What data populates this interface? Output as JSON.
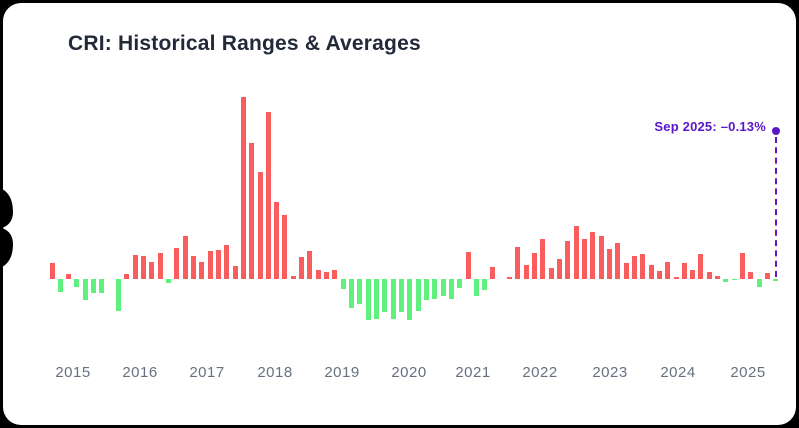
{
  "page": {
    "background": "#000000"
  },
  "card": {
    "background": "#ffffff",
    "shape": "rounded-card-with-left-tail"
  },
  "header": {
    "title": "CRI: Historical Ranges & Averages"
  },
  "annotation": {
    "text": "Sep 2025: –0.13%",
    "color": "#5b16c9"
  },
  "chart_data": {
    "type": "bar",
    "title": "CRI: Historical Ranges & Averages",
    "unit": "%",
    "grid": false,
    "legend": false,
    "y_axis_visible": false,
    "baseline": 0,
    "positive_color": "#fa5d5d",
    "negative_color": "#5ff07d",
    "x_tick_labels": [
      "2015",
      "2016",
      "2017",
      "2018",
      "2019",
      "2020",
      "2021",
      "2022",
      "2023",
      "2024",
      "2025"
    ],
    "values": [
      1.02,
      -0.83,
      0.3,
      -0.54,
      -1.37,
      -0.91,
      -0.91,
      0.0,
      -2.06,
      0.3,
      1.53,
      1.47,
      1.1,
      1.69,
      -0.28,
      2.0,
      2.8,
      1.51,
      1.08,
      1.82,
      1.88,
      2.2,
      0.86,
      11.85,
      8.86,
      6.93,
      10.87,
      4.98,
      4.16,
      0.17,
      1.43,
      1.82,
      0.6,
      0.47,
      0.6,
      -0.65,
      -1.9,
      -1.6,
      -2.67,
      -2.62,
      -2.13,
      -2.62,
      -2.13,
      -2.67,
      -2.06,
      -1.37,
      -1.32,
      -1.11,
      -1.3,
      -0.6,
      1.73,
      -1.1,
      -0.71,
      0.76,
      0.0,
      0.15,
      2.08,
      0.93,
      1.71,
      2.58,
      0.71,
      1.28,
      2.49,
      3.45,
      2.62,
      3.06,
      2.81,
      1.95,
      2.34,
      1.04,
      1.48,
      1.65,
      0.93,
      0.54,
      1.1,
      0.15,
      1.04,
      0.6,
      1.6,
      0.47,
      0.21,
      -0.21,
      -0.07,
      1.67,
      0.45,
      -0.5,
      0.37,
      -0.13
    ],
    "last_point": {
      "label": "Sep 2025",
      "value": -0.13
    },
    "value_range_approx": [
      -2.7,
      11.9
    ]
  }
}
